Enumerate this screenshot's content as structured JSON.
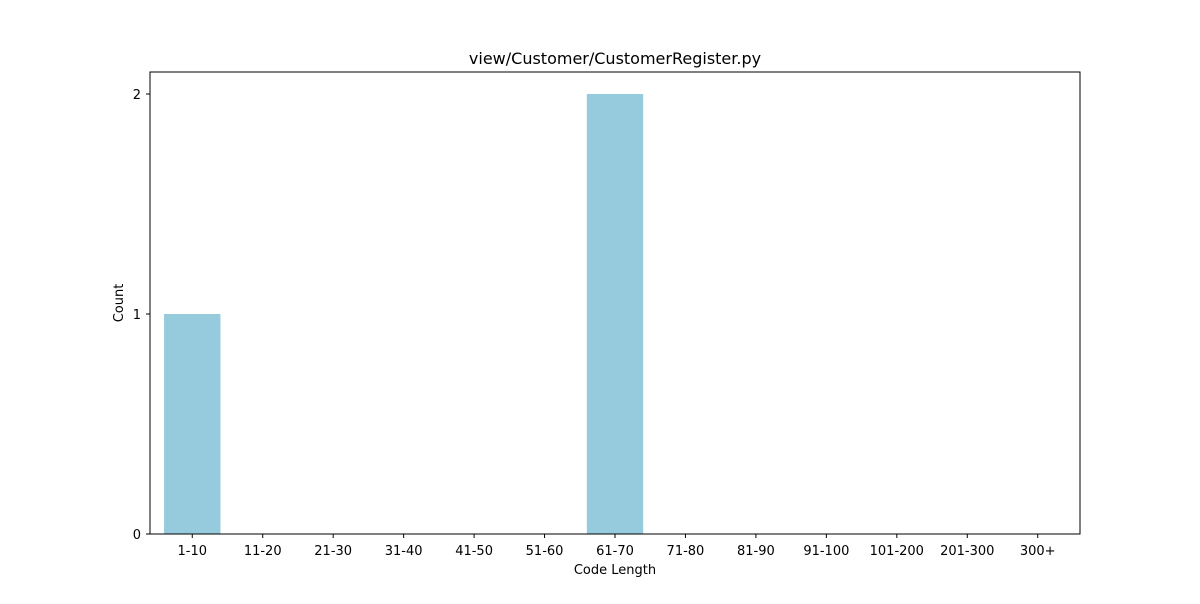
{
  "chart_data": {
    "type": "bar",
    "title": "view/Customer/CustomerRegister.py",
    "xlabel": "Code Length",
    "ylabel": "Count",
    "categories": [
      "1-10",
      "11-20",
      "21-30",
      "31-40",
      "41-50",
      "51-60",
      "61-70",
      "71-80",
      "81-90",
      "91-100",
      "101-200",
      "201-300",
      "300+"
    ],
    "values": [
      1,
      0,
      0,
      0,
      0,
      0,
      2,
      0,
      0,
      0,
      0,
      0,
      0
    ],
    "ylim": [
      0,
      2.1
    ],
    "yticks": [
      0,
      1,
      2
    ],
    "grid": false,
    "bar_color": "#96cadd"
  }
}
